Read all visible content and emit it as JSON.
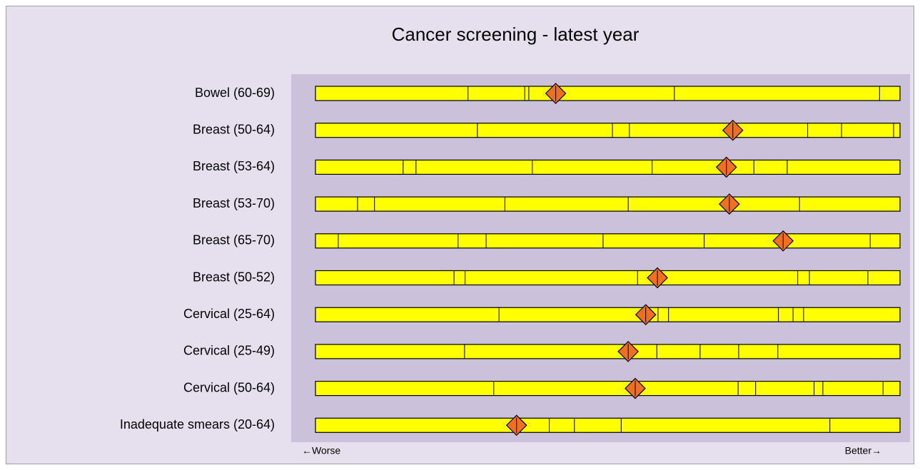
{
  "chart_data": {
    "type": "spine",
    "title": "Cancer screening - latest year",
    "categories": [
      "Bowel (60-69)",
      "Breast (50-64)",
      "Breast (53-64)",
      "Breast (53-70)",
      "Breast (65-70)",
      "Breast (50-52)",
      "Cervical (25-64)",
      "Cervical (25-49)",
      "Cervical (50-64)",
      "Inadequate smears (20-64)"
    ],
    "dividers": [
      [
        26.1,
        35.8,
        36.5,
        61.4,
        96.5
      ],
      [
        27.7,
        50.8,
        53.7,
        84.2,
        90.0,
        98.9
      ],
      [
        15.0,
        17.2,
        37.1,
        57.6,
        75.0,
        80.7
      ],
      [
        7.2,
        10.1,
        32.4,
        53.5,
        82.8
      ],
      [
        3.9,
        24.4,
        29.2,
        49.2,
        66.5,
        94.9
      ],
      [
        23.7,
        25.6,
        55.1,
        82.5,
        84.5,
        94.5
      ],
      [
        31.4,
        58.6,
        60.4,
        79.2,
        81.7,
        83.5
      ],
      [
        25.5,
        58.4,
        65.8,
        72.4,
        79.1
      ],
      [
        30.5,
        72.3,
        75.3,
        85.3,
        86.8,
        97.1
      ],
      [
        40.0,
        44.3,
        52.3,
        88.0
      ]
    ],
    "values": [
      41.1,
      71.4,
      70.3,
      70.8,
      80.0,
      58.5,
      56.5,
      53.5,
      54.7,
      34.4
    ],
    "xlim": [
      0,
      100
    ],
    "left_label": "←Worse",
    "right_label": "Better→",
    "bar_color": "#ffff00",
    "marker_color": "#f07020",
    "background_color": "#e6e0ee",
    "plot_color": "#ccc1da"
  }
}
